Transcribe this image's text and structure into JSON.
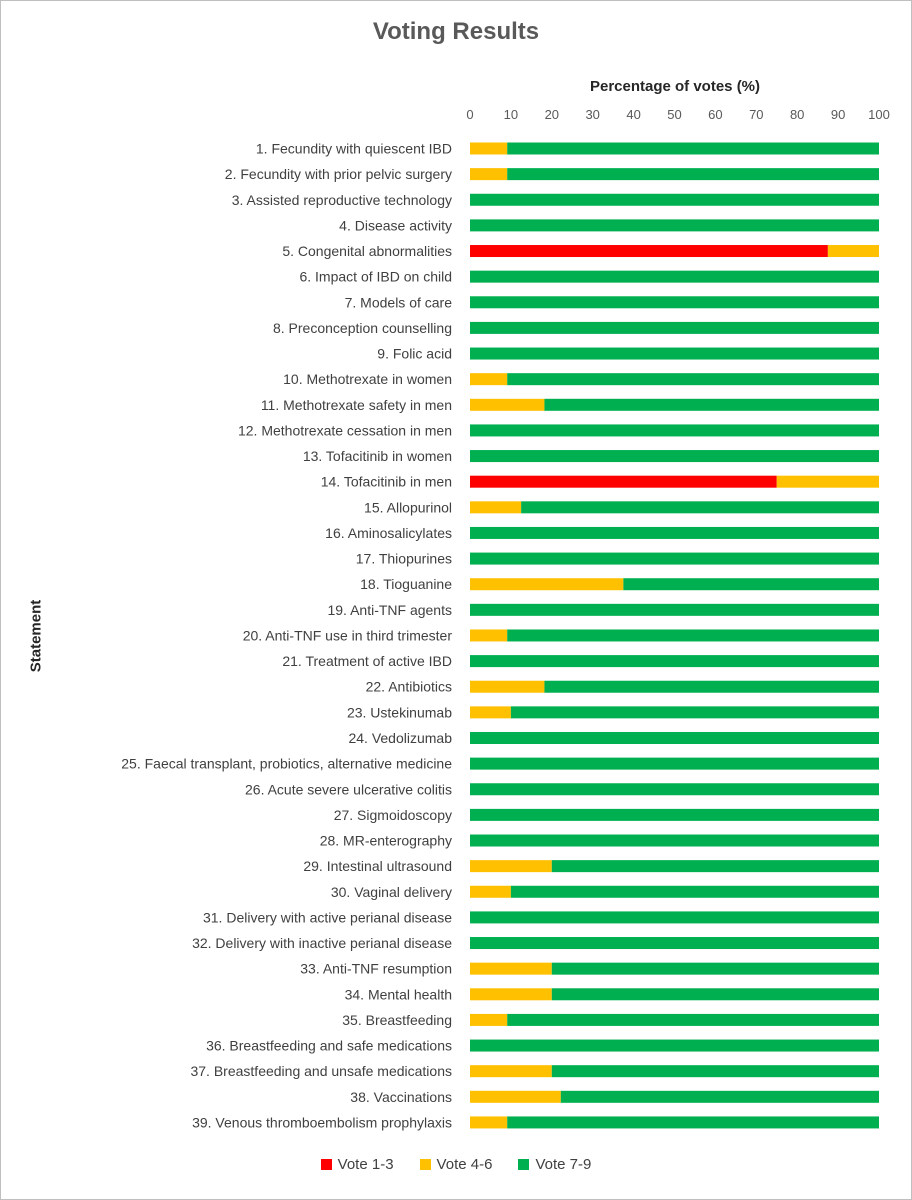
{
  "chart_data": {
    "type": "bar",
    "orientation": "horizontal",
    "stacked": true,
    "title": "Voting Results",
    "xlabel": "Percentage of votes (%)",
    "ylabel": "Statement",
    "xlim": [
      0,
      100
    ],
    "xticks": [
      0,
      10,
      20,
      30,
      40,
      50,
      60,
      70,
      80,
      90,
      100
    ],
    "legend_position": "bottom",
    "categories": [
      "1. Fecundity with quiescent IBD",
      "2. Fecundity with prior pelvic surgery",
      "3. Assisted reproductive technology",
      "4. Disease activity",
      "5. Congenital abnormalities",
      "6. Impact of IBD on child",
      "7. Models of care",
      "8. Preconception counselling",
      "9. Folic acid",
      "10. Methotrexate in women",
      "11. Methotrexate safety in men",
      "12. Methotrexate cessation in men",
      "13. Tofacitinib in women",
      "14. Tofacitinib in men",
      "15. Allopurinol",
      "16. Aminosalicylates",
      "17. Thiopurines",
      "18. Tioguanine",
      "19. Anti-TNF agents",
      "20. Anti-TNF use in third trimester",
      "21. Treatment of active IBD",
      "22. Antibiotics",
      "23. Ustekinumab",
      "24. Vedolizumab",
      "25. Faecal transplant, probiotics, alternative medicine",
      "26. Acute severe ulcerative colitis",
      "27. Sigmoidoscopy",
      "28. MR-enterography",
      "29. Intestinal ultrasound",
      "30. Vaginal delivery",
      "31. Delivery with active perianal disease",
      "32. Delivery with inactive perianal disease",
      "33. Anti-TNF resumption",
      "34. Mental health",
      "35. Breastfeeding",
      "36. Breastfeeding and safe medications",
      "37. Breastfeeding and unsafe medications",
      "38. Vaccinations",
      "39. Venous thromboembolism prophylaxis"
    ],
    "series": [
      {
        "name": "Vote 1-3",
        "color": "#ff0000",
        "values": [
          0,
          0,
          0,
          0,
          87.5,
          0,
          0,
          0,
          0,
          0,
          0,
          0,
          0,
          75,
          0,
          0,
          0,
          0,
          0,
          0,
          0,
          0,
          0,
          0,
          0,
          0,
          0,
          0,
          0,
          0,
          0,
          0,
          0,
          0,
          0,
          0,
          0,
          0,
          0
        ]
      },
      {
        "name": "Vote 4-6",
        "color": "#ffc000",
        "values": [
          9.1,
          9.1,
          0,
          0,
          12.5,
          0,
          0,
          0,
          0,
          9.1,
          18.2,
          0,
          0,
          25,
          12.5,
          0,
          0,
          37.5,
          0,
          9.1,
          0,
          18.2,
          10,
          0,
          0,
          0,
          0,
          0,
          20,
          10,
          0,
          0,
          20,
          20,
          9.1,
          0,
          20,
          22.2,
          9.1
        ]
      },
      {
        "name": "Vote 7-9",
        "color": "#00b050",
        "values": [
          90.9,
          90.9,
          100,
          100,
          0,
          100,
          100,
          100,
          100,
          90.9,
          81.8,
          100,
          100,
          0,
          87.5,
          100,
          100,
          62.5,
          100,
          90.9,
          100,
          81.8,
          90,
          100,
          100,
          100,
          100,
          100,
          80,
          90,
          100,
          100,
          80,
          80,
          90.9,
          100,
          80,
          77.8,
          90.9
        ]
      }
    ]
  }
}
